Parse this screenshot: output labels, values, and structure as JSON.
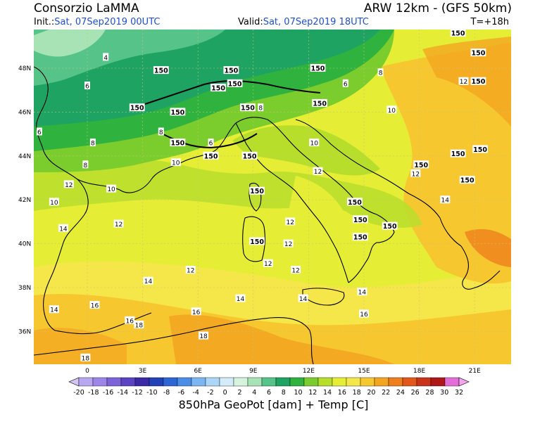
{
  "header": {
    "title_left": "Consorzio LaMMA",
    "title_right": "ARW 12km - (GFS 50km)",
    "init_label": "Init.:",
    "init_value": "Sat, 07Sep2019 00UTC",
    "valid_label": "Valid:",
    "valid_value": "Sat, 07Sep2019 18UTC",
    "forecast_hour": "T=+18h"
  },
  "map": {
    "lat_labels": [
      "48N",
      "46N",
      "44N",
      "42N",
      "40N",
      "38N",
      "36N"
    ],
    "lon_labels": [
      "0",
      "3E",
      "6E",
      "9E",
      "12E",
      "15E",
      "18E",
      "21E"
    ],
    "temp_labels": [
      {
        "t": "4",
        "lon": 1.0,
        "lat": 48.5
      },
      {
        "t": "6",
        "lon": 0.0,
        "lat": 47.2
      },
      {
        "t": "6",
        "lon": -2.6,
        "lat": 45.1
      },
      {
        "t": "8",
        "lon": 0.3,
        "lat": 44.6
      },
      {
        "t": "8",
        "lon": 4.0,
        "lat": 45.1
      },
      {
        "t": "8",
        "lon": -0.1,
        "lat": 43.6
      },
      {
        "t": "10",
        "lon": 4.8,
        "lat": 43.7
      },
      {
        "t": "10",
        "lon": 1.3,
        "lat": 42.5
      },
      {
        "t": "10",
        "lon": -1.8,
        "lat": 41.9
      },
      {
        "t": "12",
        "lon": -1.0,
        "lat": 42.7
      },
      {
        "t": "12",
        "lon": 1.7,
        "lat": 40.9
      },
      {
        "t": "14",
        "lon": -1.3,
        "lat": 40.7
      },
      {
        "t": "12",
        "lon": 5.6,
        "lat": 38.8
      },
      {
        "t": "14",
        "lon": 3.3,
        "lat": 38.3
      },
      {
        "t": "14",
        "lon": -1.8,
        "lat": 37.0
      },
      {
        "t": "16",
        "lon": 0.4,
        "lat": 37.2
      },
      {
        "t": "16",
        "lon": 2.3,
        "lat": 36.5
      },
      {
        "t": "18",
        "lon": 2.8,
        "lat": 36.3
      },
      {
        "t": "16",
        "lon": 5.9,
        "lat": 36.9
      },
      {
        "t": "18",
        "lon": 6.3,
        "lat": 35.8
      },
      {
        "t": "18",
        "lon": -0.1,
        "lat": 34.8
      },
      {
        "t": "14",
        "lon": 8.3,
        "lat": 37.5
      },
      {
        "t": "12",
        "lon": 11.0,
        "lat": 41.0
      },
      {
        "t": "12",
        "lon": 10.9,
        "lat": 40.0
      },
      {
        "t": "12",
        "lon": 9.8,
        "lat": 39.1
      },
      {
        "t": "12",
        "lon": 11.3,
        "lat": 38.8
      },
      {
        "t": "14",
        "lon": 11.7,
        "lat": 37.5
      },
      {
        "t": "14",
        "lon": 14.9,
        "lat": 37.8
      },
      {
        "t": "16",
        "lon": 15.0,
        "lat": 36.8
      },
      {
        "t": "12",
        "lon": 12.5,
        "lat": 43.3
      },
      {
        "t": "10",
        "lon": 12.3,
        "lat": 44.6
      },
      {
        "t": "10",
        "lon": 16.5,
        "lat": 46.1
      },
      {
        "t": "12",
        "lon": 17.8,
        "lat": 43.2
      },
      {
        "t": "12",
        "lon": 20.4,
        "lat": 47.4
      },
      {
        "t": "14",
        "lon": 19.4,
        "lat": 42.0
      },
      {
        "t": "8",
        "lon": 15.9,
        "lat": 47.8
      },
      {
        "t": "8",
        "lon": 9.4,
        "lat": 46.2
      },
      {
        "t": "6",
        "lon": 14.0,
        "lat": 47.3
      },
      {
        "t": "6",
        "lon": 6.7,
        "lat": 44.6
      }
    ],
    "geo_labels": [
      {
        "t": "150",
        "lon": 4.0,
        "lat": 47.9
      },
      {
        "t": "150",
        "lon": 7.8,
        "lat": 47.9
      },
      {
        "t": "150",
        "lon": 8.0,
        "lat": 47.3
      },
      {
        "t": "150",
        "lon": 7.1,
        "lat": 47.1
      },
      {
        "t": "150",
        "lon": 8.7,
        "lat": 46.2
      },
      {
        "t": "150",
        "lon": 2.7,
        "lat": 46.2
      },
      {
        "t": "150",
        "lon": 4.9,
        "lat": 46.0
      },
      {
        "t": "150",
        "lon": 4.9,
        "lat": 44.6
      },
      {
        "t": "150",
        "lon": 6.7,
        "lat": 44.0
      },
      {
        "t": "150",
        "lon": 8.8,
        "lat": 44.0
      },
      {
        "t": "150",
        "lon": 12.5,
        "lat": 48.0
      },
      {
        "t": "150",
        "lon": 12.6,
        "lat": 46.4
      },
      {
        "t": "150",
        "lon": 9.2,
        "lat": 42.4
      },
      {
        "t": "150",
        "lon": 9.2,
        "lat": 40.1
      },
      {
        "t": "150",
        "lon": 14.5,
        "lat": 41.9
      },
      {
        "t": "150",
        "lon": 14.8,
        "lat": 41.1
      },
      {
        "t": "150",
        "lon": 14.8,
        "lat": 40.3
      },
      {
        "t": "150",
        "lon": 16.4,
        "lat": 40.8
      },
      {
        "t": "150",
        "lon": 18.1,
        "lat": 43.6
      },
      {
        "t": "150",
        "lon": 20.1,
        "lat": 44.1
      },
      {
        "t": "150",
        "lon": 20.6,
        "lat": 42.9
      },
      {
        "t": "150",
        "lon": 21.2,
        "lat": 48.7
      },
      {
        "t": "150",
        "lon": 21.2,
        "lat": 47.4
      },
      {
        "t": "150",
        "lon": 21.3,
        "lat": 44.3
      },
      {
        "t": "150",
        "lon": 20.1,
        "lat": 49.6
      }
    ]
  },
  "colorbar": {
    "labels": [
      "-20",
      "-18",
      "-16",
      "-14",
      "-12",
      "-10",
      "-8",
      "-6",
      "-4",
      "-2",
      "0",
      "2",
      "4",
      "6",
      "8",
      "10",
      "12",
      "14",
      "16",
      "18",
      "20",
      "22",
      "24",
      "26",
      "28",
      "30",
      "32"
    ],
    "colors": [
      "#b7a6f0",
      "#9d86e8",
      "#7d63d8",
      "#5c43c4",
      "#3a2aa6",
      "#2342b8",
      "#2f66d6",
      "#4b8ee8",
      "#7bb6f2",
      "#abd6f8",
      "#d4ecfa",
      "#d6f3dd",
      "#a8e3b6",
      "#56c489",
      "#1fa362",
      "#2fb23e",
      "#7acd2c",
      "#b8de2c",
      "#e5ee35",
      "#f5e64a",
      "#f7c72f",
      "#f3a521",
      "#ee7f1c",
      "#e2571a",
      "#c93419",
      "#b01719",
      "#e46ed8"
    ]
  },
  "footer": "850hPa GeoPot [dam] + Temp [C]"
}
